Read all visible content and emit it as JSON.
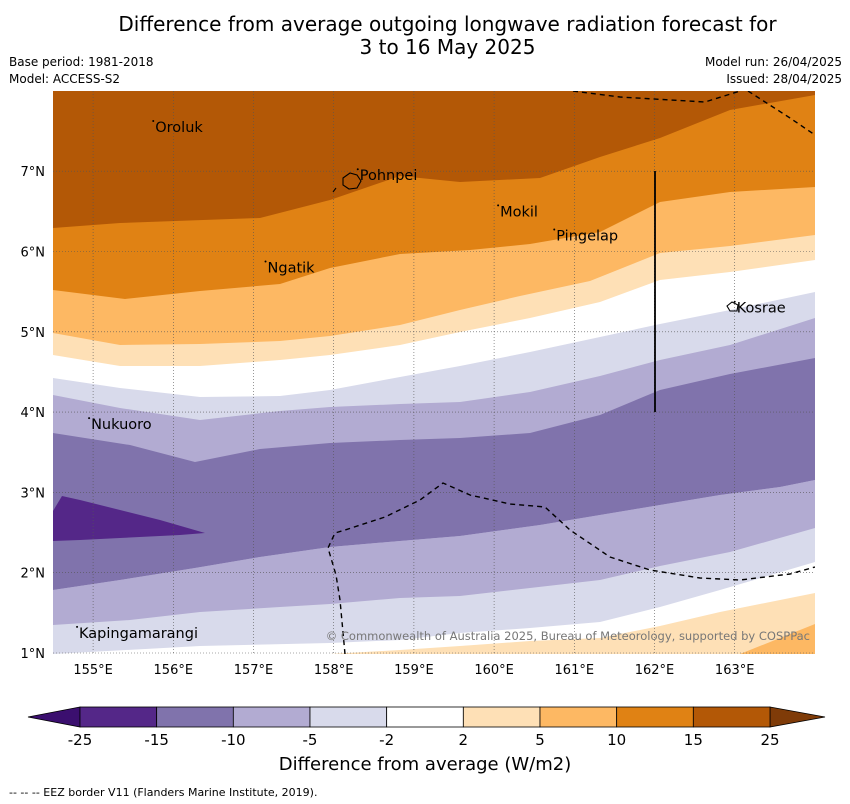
{
  "header": {
    "title_line1": "Difference from average outgoing longwave radiation forecast for",
    "title_line2": "3 to 16 May 2025",
    "base_period": "Base period: 1981-2018",
    "model": "Model: ACCESS-S2",
    "model_run": "Model run: 26/04/2025",
    "issued": "Issued: 28/04/2025"
  },
  "map": {
    "lon_ticks": [
      "155°E",
      "156°E",
      "157°E",
      "158°E",
      "159°E",
      "160°E",
      "161°E",
      "162°E",
      "163°E"
    ],
    "lat_ticks": [
      "7°N",
      "6°N",
      "5°N",
      "4°N",
      "3°N",
      "2°N",
      "1°N"
    ],
    "places": [
      {
        "name": "Oroluk",
        "lon": 155.75,
        "lat": 7.55
      },
      {
        "name": "Pohnpei",
        "lon": 158.3,
        "lat": 6.95
      },
      {
        "name": "Mokil",
        "lon": 160.05,
        "lat": 6.5
      },
      {
        "name": "Pingelap",
        "lon": 160.75,
        "lat": 6.2
      },
      {
        "name": "Ngatik",
        "lon": 157.15,
        "lat": 5.8
      },
      {
        "name": "Kosrae",
        "lon": 163.0,
        "lat": 5.3
      },
      {
        "name": "Nukuoro",
        "lon": 154.95,
        "lat": 3.85
      },
      {
        "name": "Kapingamarangi",
        "lon": 154.8,
        "lat": 1.25
      }
    ],
    "copyright": "© Commonwealth of Australia 2025, Bureau of Meteorology, supported by COSPPac"
  },
  "colorbar": {
    "ticks": [
      "-25",
      "-15",
      "-10",
      "-5",
      "-2",
      "2",
      "5",
      "10",
      "15",
      "25"
    ],
    "colors": {
      "below_min": "#3b0f6f",
      "bins": [
        "#542788",
        "#8073ac",
        "#b2abd2",
        "#d8daeb",
        "#ffffff",
        "#fee0b6",
        "#fdb863",
        "#e08214",
        "#b35806"
      ],
      "above_max": "#7f3b08"
    },
    "label": "Difference from average (W/m2)"
  },
  "footer": {
    "eez_note": "--  --  -- EEZ border V11 (Flanders Marine Institute, 2019)."
  }
}
